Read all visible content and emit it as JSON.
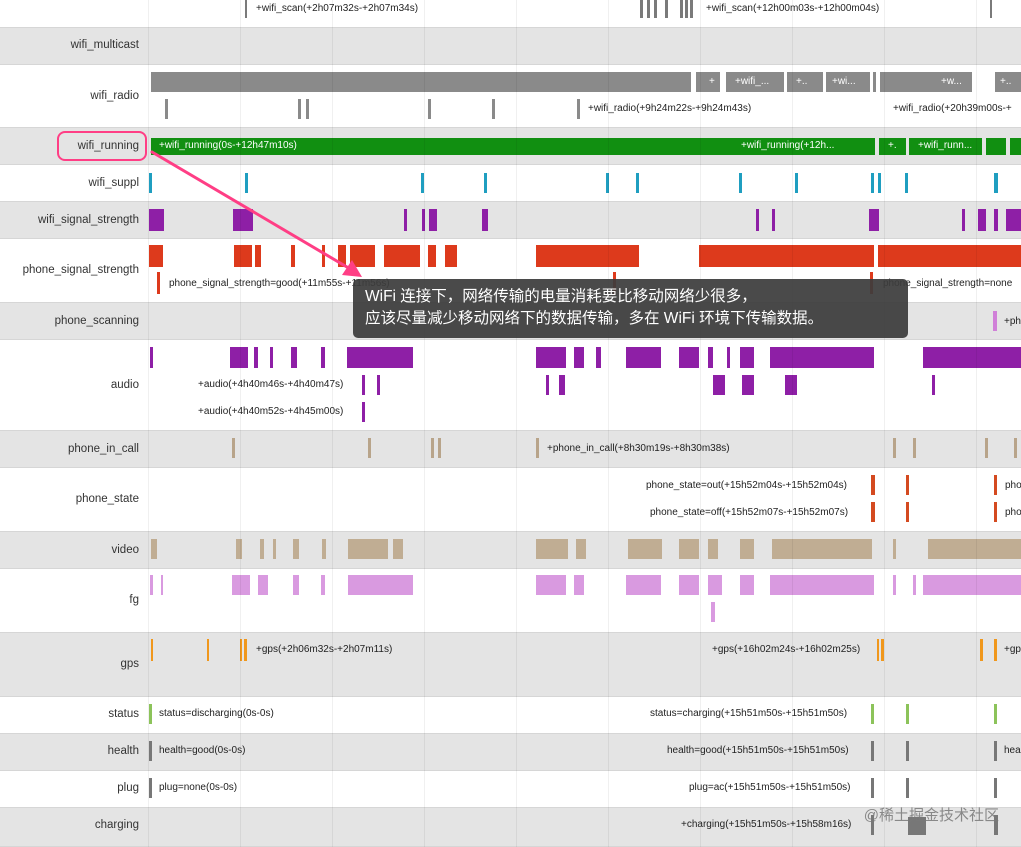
{
  "rows": [
    {
      "label": "",
      "shade": false,
      "labels": [
        "+wifi_scan(+2h07m32s-+2h07m34s)",
        "+wifi_scan(+12h00m03s-+12h00m04s)"
      ]
    },
    {
      "label": "wifi_multicast",
      "shade": true,
      "labels": []
    },
    {
      "label": "wifi_radio",
      "shade": false,
      "labels": [
        "+",
        "+wifi_...",
        "+..",
        "+wi...",
        "+w...",
        "+..",
        "+wifi_radio(+9h24m22s-+9h24m43s)",
        "+wifi_radio(+20h39m00s-+"
      ]
    },
    {
      "label": "wifi_running",
      "shade": true,
      "labels": [
        "+wifi_running(0s-+12h47m10s)",
        "+wifi_running(+12h...",
        "+.",
        "+wifi_runn...",
        "+..."
      ]
    },
    {
      "label": "wifi_suppl",
      "shade": false,
      "labels": []
    },
    {
      "label": "wifi_signal_strength",
      "shade": true,
      "labels": []
    },
    {
      "label": "phone_signal_strength",
      "shade": false,
      "labels": [
        "phone_signal_strength=good(+11m55s-+11m56s)",
        "phone_signal_strength=none"
      ]
    },
    {
      "label": "phone_scanning",
      "shade": true,
      "labels": [
        "+ph"
      ]
    },
    {
      "label": "audio",
      "shade": false,
      "labels": [
        "+audio(+4h40m46s-+4h40m47s)",
        "+audio(+4h40m52s-+4h45m00s)"
      ]
    },
    {
      "label": "phone_in_call",
      "shade": true,
      "labels": [
        "+phone_in_call(+8h30m19s-+8h30m38s)"
      ]
    },
    {
      "label": "phone_state",
      "shade": false,
      "labels": [
        "phone_state=out(+15h52m04s-+15h52m04s)",
        "phone_state=off(+15h52m07s-+15h52m07s)",
        "pho",
        "pho"
      ]
    },
    {
      "label": "video",
      "shade": true,
      "labels": []
    },
    {
      "label": "fg",
      "shade": false,
      "labels": []
    },
    {
      "label": "gps",
      "shade": true,
      "labels": [
        "+gps(+2h06m32s-+2h07m11s)",
        "+gps(+16h02m24s-+16h02m25s)",
        "+gp"
      ]
    },
    {
      "label": "status",
      "shade": false,
      "labels": [
        "status=discharging(0s-0s)",
        "status=charging(+15h51m50s-+15h51m50s)"
      ]
    },
    {
      "label": "health",
      "shade": true,
      "labels": [
        "health=good(0s-0s)",
        "health=good(+15h51m50s-+15h51m50s)",
        "hea"
      ]
    },
    {
      "label": "plug",
      "shade": false,
      "labels": [
        "plug=none(0s-0s)",
        "plug=ac(+15h51m50s-+15h51m50s)"
      ]
    },
    {
      "label": "charging",
      "shade": true,
      "labels": [
        "+charging(+15h51m50s-+15h58m16s)"
      ]
    }
  ],
  "callout": {
    "line1": "WiFi 连接下，网络传输的电量消耗要比移动网络少很多，",
    "line2": "应该尽量减少移动网络下的数据传输，多在 WiFi 环境下传输数据。"
  },
  "watermark": "@稀土掘金技术社区",
  "colors": {
    "wifi_scan": "#7a7a7a",
    "wifi_radio": "#8a8a8a",
    "wifi_running": "#118f11",
    "wifi_suppl": "#1f9ec0",
    "wifi_signal_strength": "#8e1fa6",
    "phone_signal_strength": "#dd3a1c",
    "phone_scanning": "#d080d8",
    "audio": "#8e1fa6",
    "phone_in_call": "#b8a48a",
    "phone_state": "#d44a20",
    "video": "#bba68a",
    "fg": "#d99ae0",
    "gps": "#f0971c",
    "status": "#8cc35a",
    "health": "#777777",
    "plug": "#777777",
    "charging": "#777777",
    "highlight": "#ff3e85"
  }
}
